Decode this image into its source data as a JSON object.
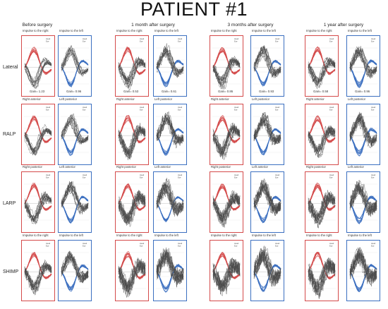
{
  "title": "PATIENT #1",
  "timepoints": [
    "Before surgery",
    "1 month after surgery",
    "3 months after surgery",
    "1 year after surgery"
  ],
  "canals": [
    "Lateral",
    "RALP",
    "LARP",
    "SHIMP"
  ],
  "legend": [
    "Head",
    "Eye"
  ],
  "rows": [
    {
      "canal": "Lateral",
      "cells": [
        {
          "left_label": "Impulse to the right",
          "right_label": "Impulse to the left",
          "left_gain": "Gain= 1.23",
          "right_gain": "Gain= 0.96"
        },
        {
          "left_label": "Impulse to the right",
          "right_label": "Impulse to the left",
          "left_gain": "Gain= 0.53",
          "right_gain": "Gain= 0.61"
        },
        {
          "left_label": "Impulse to the right",
          "right_label": "Impulse to the left",
          "left_gain": "Gain= 0.86",
          "right_gain": "Gain= 0.93"
        },
        {
          "left_label": "Impulse to the right",
          "right_label": "Impulse to the left",
          "left_gain": "Gain= 0.58",
          "right_gain": "Gain= 0.96"
        }
      ]
    },
    {
      "canal": "RALP",
      "cells": [
        {
          "left_label": "Right anterior",
          "right_label": "Left posterior"
        },
        {
          "left_label": "Right anterior",
          "right_label": "Left posterior"
        },
        {
          "left_label": "Right anterior",
          "right_label": "Left posterior"
        },
        {
          "left_label": "Right anterior",
          "right_label": "Left posterior"
        }
      ]
    },
    {
      "canal": "LARP",
      "cells": [
        {
          "left_label": "Right posterior",
          "right_label": "Left anterior"
        },
        {
          "left_label": "Right posterior",
          "right_label": "Left anterior"
        },
        {
          "left_label": "Right posterior",
          "right_label": "Left anterior"
        },
        {
          "left_label": "Right posterior",
          "right_label": "Left anterior"
        }
      ]
    },
    {
      "canal": "SHIMP",
      "cells": [
        {
          "left_label": "Impulse to the right",
          "right_label": "Impulse to the left"
        },
        {
          "left_label": "Impulse to the right",
          "right_label": "Impulse to the left"
        },
        {
          "left_label": "Impulse to the right",
          "right_label": "Impulse to the left"
        },
        {
          "left_label": "Impulse to the right",
          "right_label": "Impulse to the left"
        }
      ]
    }
  ],
  "colors": {
    "right_side": "#d44a4a",
    "left_side": "#3b6fc0",
    "eye_trace": "#4a4a4a"
  }
}
